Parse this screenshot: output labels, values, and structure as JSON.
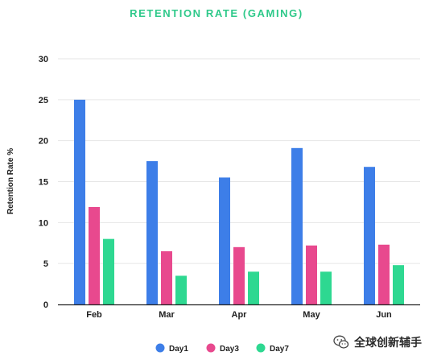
{
  "chart_data": {
    "type": "bar",
    "title": "RETENTION RATE (GAMING)",
    "ylabel": "Retention Rate %",
    "xlabel": "",
    "categories": [
      "Feb",
      "Mar",
      "Apr",
      "May",
      "Jun"
    ],
    "ylim": [
      0,
      30
    ],
    "yticks": [
      0,
      5,
      10,
      15,
      20,
      25,
      30
    ],
    "grid": true,
    "legend_position": "bottom-center",
    "series": [
      {
        "name": "Day1",
        "color": "#3d7ee8",
        "values": [
          25.0,
          17.5,
          15.5,
          19.1,
          16.8
        ]
      },
      {
        "name": "Day3",
        "color": "#e8498e",
        "values": [
          11.9,
          6.5,
          7.0,
          7.2,
          7.3
        ]
      },
      {
        "name": "Day7",
        "color": "#2ed891",
        "values": [
          8.0,
          3.5,
          4.0,
          4.0,
          4.8
        ]
      }
    ]
  },
  "colors": {
    "title": "#2ec98a",
    "grid": "#e6e6e6",
    "axis": "#222222"
  },
  "watermark": {
    "text": "全球创新辅手",
    "icon": "wechat-icon"
  }
}
